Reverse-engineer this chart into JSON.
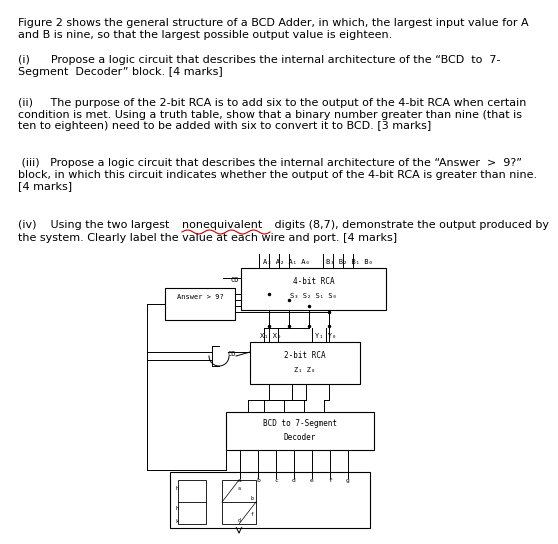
{
  "bg_color": "#ffffff",
  "text_color": "#000000",
  "title_text": "Figure 2 shows the general structure of a BCD Adder, in which, the largest input value for A\nand B is nine, so that the largest possible output value is eighteen.",
  "q1_text": "(i)      Propose a logic circuit that describes the internal architecture of the “BCD  to  7-\nSegment  Decoder” block. [4 marks]",
  "q2_text": "(ii)     The purpose of the 2-bit RCA is to add six to the output of the 4-bit RCA when certain\ncondition is met. Using a truth table, show that a binary number greater than nine (that is\nten to eighteen) need to be added with six to convert it to BCD. [3 marks]",
  "q3_text": " (iii)   Propose a logic circuit that describes the internal architecture of the “Answer  >  9?”\nblock, in which this circuit indicates whether the output of the 4-bit RCA is greater than nine.\n[4 marks]",
  "font_size_body": 8.0,
  "font_size_diagram": 5.5,
  "squiggle_color": "#cc0000"
}
